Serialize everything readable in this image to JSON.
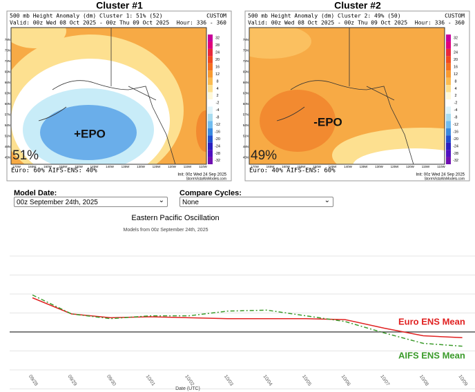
{
  "panels": [
    {
      "heading": "Cluster #1",
      "title": "500 mb Height Anomaly (dm) Cluster 1: 51% (52)",
      "tag": "CUSTOM",
      "valid": "Valid: 00z Wed 08 Oct 2025 - 00z Thu 09 Oct 2025",
      "hour": "Hour: 336 - 360",
      "label": "+EPO",
      "percent": "51%",
      "members": "Euro: 60%  AIFS-ENS: 40%",
      "init": "Init: 00z Wed 24 Sep 2025",
      "credit": "StormVistaWxModels.com"
    },
    {
      "heading": "Cluster #2",
      "title": "500 mb Height Anomaly (dm) Cluster 2: 49% (50)",
      "tag": "CUSTOM",
      "valid": "Valid: 00z Wed 08 Oct 2025 - 00z Thu 09 Oct 2025",
      "hour": "Hour: 336 - 360",
      "label": "-EPO",
      "percent": "49%",
      "members": "Euro: 40%  AIFS-ENS: 60%",
      "init": "Init: 00z Wed 24 Sep 2025",
      "credit": "StormVistaWxModels.com"
    }
  ],
  "scale_ticks": [
    32,
    28,
    24,
    20,
    16,
    12,
    8,
    4,
    2,
    -2,
    -4,
    -8,
    -12,
    -16,
    -20,
    -24,
    -28,
    -32
  ],
  "lat_labels": [
    "78N",
    "75N",
    "72N",
    "69N",
    "66N",
    "63N",
    "60N",
    "57N",
    "54N",
    "51N",
    "48N",
    "45N"
  ],
  "lon_labels": [
    "170W",
    "165W",
    "160W",
    "155W",
    "150W",
    "145W",
    "140W",
    "135W",
    "130W",
    "125W",
    "120W",
    "115W",
    "110W"
  ],
  "controls": {
    "model_date_label": "Model Date:",
    "model_date": "00z September 24th, 2025",
    "compare_label": "Compare Cycles:",
    "compare": "None"
  },
  "chart_data": {
    "type": "line",
    "title": "Eastern Pacific Oscillation",
    "subtitle": "Models from 00z September 24th, 2025",
    "x_label": "Date (UTC)",
    "categories": [
      "09/28",
      "09/29",
      "09/30",
      "10/01",
      "10/02",
      "10/03",
      "10/04",
      "10/05",
      "10/06",
      "10/07",
      "10/08",
      "10/09"
    ],
    "series": [
      {
        "name": "Euro ENS Mean",
        "color": "#e02020",
        "values": [
          1.8,
          0.95,
          0.75,
          0.8,
          0.75,
          0.7,
          0.7,
          0.7,
          0.65,
          0.2,
          -0.2,
          -0.3
        ]
      },
      {
        "name": "AIFS ENS Mean",
        "color": "#3a9a2a",
        "values": [
          1.95,
          0.95,
          0.7,
          0.85,
          0.85,
          1.1,
          1.15,
          0.85,
          0.55,
          -0.05,
          -0.6,
          -0.75
        ]
      }
    ],
    "ylim": [
      -3,
      4
    ],
    "grid": true
  }
}
